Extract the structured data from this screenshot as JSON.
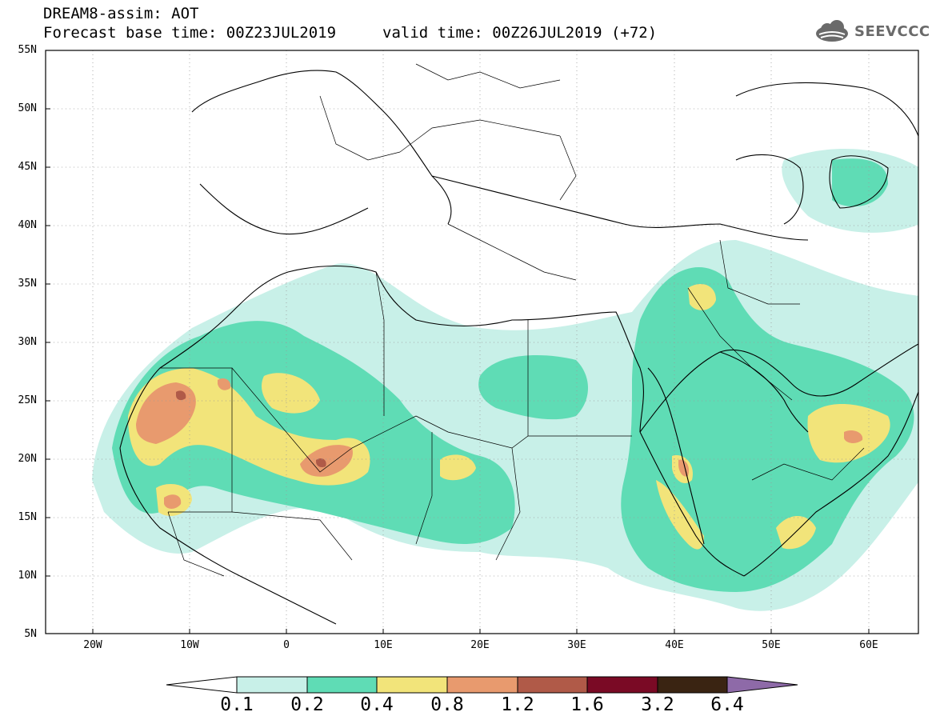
{
  "header": {
    "line1": "DREAM8-assim: AOT",
    "line2": "Forecast base time: 00Z23JUL2019",
    "valid": "valid time: 00Z26JUL2019 (+72)"
  },
  "logo": {
    "text": "SEEVCCC",
    "icon": "cloud-logo-icon"
  },
  "axes": {
    "lat_labels": [
      "55N",
      "50N",
      "45N",
      "40N",
      "35N",
      "30N",
      "25N",
      "20N",
      "15N",
      "10N",
      "5N"
    ],
    "lon_labels": [
      "20W",
      "10W",
      "0",
      "10E",
      "20E",
      "30E",
      "40E",
      "50E",
      "60E"
    ]
  },
  "colorbar": {
    "labels": [
      "0.1",
      "0.2",
      "0.4",
      "0.8",
      "1.2",
      "1.6",
      "3.2",
      "6.4"
    ],
    "colors": [
      "#ffffff",
      "#c8f0e8",
      "#5fdcb5",
      "#f2e47a",
      "#e89a6e",
      "#b05a48",
      "#7a0a25",
      "#3a2412",
      "#8e6aa8"
    ]
  },
  "colors": {
    "lev1": "#c8f0e8",
    "lev2": "#5fdcb5",
    "lev3": "#f2e47a",
    "lev4": "#e89a6e",
    "lev5": "#b05a48"
  }
}
